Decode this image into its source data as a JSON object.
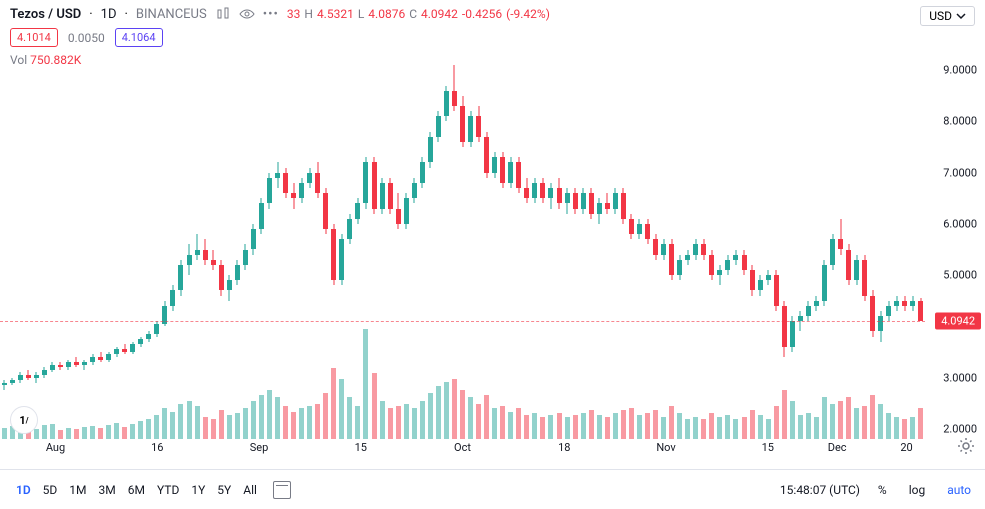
{
  "header": {
    "symbol": "Tezos / USD",
    "interval": "1D",
    "exchange": "BINANCEUS",
    "ohlc": {
      "o_partial": "33",
      "h": "4.5321",
      "l": "4.0876",
      "c": "4.0942",
      "chg": "-0.4256",
      "pct": "(-9.42%)"
    },
    "currency": "USD"
  },
  "row2": {
    "badge1": "4.1014",
    "spread": "0.0050",
    "badge2": "4.1064"
  },
  "volume": {
    "label": "Vol",
    "value": "750.882K"
  },
  "footer": {
    "timeframes": [
      "1D",
      "5D",
      "1M",
      "3M",
      "6M",
      "YTD",
      "1Y",
      "5Y",
      "All"
    ],
    "active": "1D",
    "clock": "15:48:07 (UTC)",
    "controls": [
      "%",
      "log",
      "auto"
    ]
  },
  "colors": {
    "up": "#26a69a",
    "down": "#f23645",
    "volUp": "rgba(38,166,154,0.5)",
    "volDown": "rgba(242,54,69,0.5)",
    "grid": "#e0e3eb",
    "badge1Border": "#f23645",
    "badge1Text": "#f23645",
    "badge2Border": "#5b42f3",
    "badge2Text": "#5b42f3",
    "ohlcColor": "#f23645",
    "spreadText": "#787b86"
  },
  "chart": {
    "ylim": [
      1.8,
      9.2
    ],
    "yticks": [
      2,
      3,
      4,
      5,
      6,
      7,
      8,
      9
    ],
    "ytick_fmt": [
      "2.0000",
      "3.0000",
      "4.0000",
      "5.0000",
      "6.0000",
      "7.0000",
      "8.0000",
      "9.0000"
    ],
    "priceLine": 4.0942,
    "xticks": [
      {
        "pos": 0.06,
        "label": "Aug"
      },
      {
        "pos": 0.17,
        "label": "16"
      },
      {
        "pos": 0.28,
        "label": "Sep"
      },
      {
        "pos": 0.39,
        "label": "15"
      },
      {
        "pos": 0.5,
        "label": "Oct"
      },
      {
        "pos": 0.61,
        "label": "18"
      },
      {
        "pos": 0.72,
        "label": "Nov"
      },
      {
        "pos": 0.83,
        "label": "15"
      },
      {
        "pos": 0.905,
        "label": "Dec"
      },
      {
        "pos": 0.98,
        "label": "20"
      }
    ],
    "candleWidth": 5,
    "volMaxHeight": 110,
    "candles": [
      {
        "o": 2.85,
        "h": 2.95,
        "l": 2.75,
        "c": 2.9,
        "v": 0.1,
        "up": true
      },
      {
        "o": 2.9,
        "h": 3.0,
        "l": 2.85,
        "c": 2.95,
        "v": 0.12,
        "up": true
      },
      {
        "o": 2.95,
        "h": 3.1,
        "l": 2.9,
        "c": 3.05,
        "v": 0.11,
        "up": true
      },
      {
        "o": 3.05,
        "h": 3.15,
        "l": 2.95,
        "c": 3.0,
        "v": 0.1,
        "up": false
      },
      {
        "o": 3.0,
        "h": 3.1,
        "l": 2.9,
        "c": 3.05,
        "v": 0.09,
        "up": true
      },
      {
        "o": 3.05,
        "h": 3.2,
        "l": 3.0,
        "c": 3.15,
        "v": 0.13,
        "up": true
      },
      {
        "o": 3.15,
        "h": 3.3,
        "l": 3.1,
        "c": 3.25,
        "v": 0.14,
        "up": true
      },
      {
        "o": 3.25,
        "h": 3.3,
        "l": 3.15,
        "c": 3.2,
        "v": 0.08,
        "up": false
      },
      {
        "o": 3.2,
        "h": 3.35,
        "l": 3.15,
        "c": 3.3,
        "v": 0.1,
        "up": true
      },
      {
        "o": 3.3,
        "h": 3.4,
        "l": 3.2,
        "c": 3.25,
        "v": 0.09,
        "up": false
      },
      {
        "o": 3.25,
        "h": 3.35,
        "l": 3.15,
        "c": 3.3,
        "v": 0.11,
        "up": true
      },
      {
        "o": 3.3,
        "h": 3.45,
        "l": 3.25,
        "c": 3.4,
        "v": 0.12,
        "up": true
      },
      {
        "o": 3.4,
        "h": 3.5,
        "l": 3.3,
        "c": 3.35,
        "v": 0.1,
        "up": false
      },
      {
        "o": 3.35,
        "h": 3.5,
        "l": 3.3,
        "c": 3.45,
        "v": 0.13,
        "up": true
      },
      {
        "o": 3.45,
        "h": 3.6,
        "l": 3.4,
        "c": 3.55,
        "v": 0.15,
        "up": true
      },
      {
        "o": 3.55,
        "h": 3.65,
        "l": 3.45,
        "c": 3.5,
        "v": 0.11,
        "up": false
      },
      {
        "o": 3.5,
        "h": 3.7,
        "l": 3.45,
        "c": 3.65,
        "v": 0.14,
        "up": true
      },
      {
        "o": 3.65,
        "h": 3.8,
        "l": 3.6,
        "c": 3.75,
        "v": 0.16,
        "up": true
      },
      {
        "o": 3.75,
        "h": 3.9,
        "l": 3.7,
        "c": 3.85,
        "v": 0.18,
        "up": true
      },
      {
        "o": 3.85,
        "h": 4.1,
        "l": 3.8,
        "c": 4.05,
        "v": 0.22,
        "up": true
      },
      {
        "o": 4.05,
        "h": 4.5,
        "l": 4.0,
        "c": 4.4,
        "v": 0.28,
        "up": true
      },
      {
        "o": 4.4,
        "h": 4.8,
        "l": 4.3,
        "c": 4.7,
        "v": 0.25,
        "up": true
      },
      {
        "o": 4.7,
        "h": 5.3,
        "l": 4.6,
        "c": 5.2,
        "v": 0.32,
        "up": true
      },
      {
        "o": 5.2,
        "h": 5.6,
        "l": 5.0,
        "c": 5.4,
        "v": 0.35,
        "up": true
      },
      {
        "o": 5.4,
        "h": 5.8,
        "l": 5.3,
        "c": 5.5,
        "v": 0.3,
        "up": true
      },
      {
        "o": 5.5,
        "h": 5.7,
        "l": 5.2,
        "c": 5.3,
        "v": 0.2,
        "up": false
      },
      {
        "o": 5.3,
        "h": 5.5,
        "l": 5.1,
        "c": 5.2,
        "v": 0.18,
        "up": false
      },
      {
        "o": 5.2,
        "h": 5.3,
        "l": 4.6,
        "c": 4.7,
        "v": 0.26,
        "up": false
      },
      {
        "o": 4.7,
        "h": 5.0,
        "l": 4.5,
        "c": 4.9,
        "v": 0.22,
        "up": true
      },
      {
        "o": 4.9,
        "h": 5.3,
        "l": 4.8,
        "c": 5.2,
        "v": 0.24,
        "up": true
      },
      {
        "o": 5.2,
        "h": 5.6,
        "l": 5.1,
        "c": 5.5,
        "v": 0.28,
        "up": true
      },
      {
        "o": 5.5,
        "h": 6.0,
        "l": 5.4,
        "c": 5.9,
        "v": 0.35,
        "up": true
      },
      {
        "o": 5.9,
        "h": 6.5,
        "l": 5.8,
        "c": 6.4,
        "v": 0.4,
        "up": true
      },
      {
        "o": 6.4,
        "h": 7.0,
        "l": 6.3,
        "c": 6.9,
        "v": 0.45,
        "up": true
      },
      {
        "o": 6.9,
        "h": 7.2,
        "l": 6.7,
        "c": 7.0,
        "v": 0.38,
        "up": true
      },
      {
        "o": 7.0,
        "h": 7.1,
        "l": 6.5,
        "c": 6.6,
        "v": 0.3,
        "up": false
      },
      {
        "o": 6.6,
        "h": 6.8,
        "l": 6.3,
        "c": 6.5,
        "v": 0.25,
        "up": false
      },
      {
        "o": 6.5,
        "h": 6.9,
        "l": 6.4,
        "c": 6.8,
        "v": 0.28,
        "up": true
      },
      {
        "o": 6.8,
        "h": 7.1,
        "l": 6.7,
        "c": 7.0,
        "v": 0.3,
        "up": true
      },
      {
        "o": 7.0,
        "h": 7.2,
        "l": 6.5,
        "c": 6.6,
        "v": 0.32,
        "up": false
      },
      {
        "o": 6.6,
        "h": 6.7,
        "l": 5.8,
        "c": 5.9,
        "v": 0.42,
        "up": false
      },
      {
        "o": 5.9,
        "h": 6.0,
        "l": 4.8,
        "c": 4.9,
        "v": 0.65,
        "up": false
      },
      {
        "o": 4.9,
        "h": 5.8,
        "l": 4.8,
        "c": 5.7,
        "v": 0.55,
        "up": true
      },
      {
        "o": 5.7,
        "h": 6.2,
        "l": 5.6,
        "c": 6.1,
        "v": 0.38,
        "up": true
      },
      {
        "o": 6.1,
        "h": 6.5,
        "l": 6.0,
        "c": 6.4,
        "v": 0.3,
        "up": true
      },
      {
        "o": 6.4,
        "h": 7.3,
        "l": 6.3,
        "c": 7.2,
        "v": 1.0,
        "up": true
      },
      {
        "o": 7.2,
        "h": 7.3,
        "l": 6.2,
        "c": 6.3,
        "v": 0.6,
        "up": false
      },
      {
        "o": 6.3,
        "h": 6.9,
        "l": 6.2,
        "c": 6.8,
        "v": 0.35,
        "up": true
      },
      {
        "o": 6.8,
        "h": 6.9,
        "l": 6.2,
        "c": 6.3,
        "v": 0.28,
        "up": false
      },
      {
        "o": 6.3,
        "h": 6.6,
        "l": 5.9,
        "c": 6.0,
        "v": 0.3,
        "up": false
      },
      {
        "o": 6.0,
        "h": 6.6,
        "l": 5.9,
        "c": 6.5,
        "v": 0.32,
        "up": true
      },
      {
        "o": 6.5,
        "h": 6.9,
        "l": 6.4,
        "c": 6.8,
        "v": 0.28,
        "up": true
      },
      {
        "o": 6.8,
        "h": 7.3,
        "l": 6.7,
        "c": 7.2,
        "v": 0.35,
        "up": true
      },
      {
        "o": 7.2,
        "h": 7.8,
        "l": 7.1,
        "c": 7.7,
        "v": 0.42,
        "up": true
      },
      {
        "o": 7.7,
        "h": 8.2,
        "l": 7.6,
        "c": 8.1,
        "v": 0.48,
        "up": true
      },
      {
        "o": 8.1,
        "h": 8.7,
        "l": 8.0,
        "c": 8.6,
        "v": 0.52,
        "up": true
      },
      {
        "o": 8.6,
        "h": 9.1,
        "l": 8.2,
        "c": 8.3,
        "v": 0.55,
        "up": false
      },
      {
        "o": 8.3,
        "h": 8.5,
        "l": 7.5,
        "c": 7.6,
        "v": 0.45,
        "up": false
      },
      {
        "o": 7.6,
        "h": 8.2,
        "l": 7.5,
        "c": 8.1,
        "v": 0.38,
        "up": true
      },
      {
        "o": 8.1,
        "h": 8.3,
        "l": 7.6,
        "c": 7.7,
        "v": 0.32,
        "up": false
      },
      {
        "o": 7.7,
        "h": 7.8,
        "l": 6.9,
        "c": 7.0,
        "v": 0.4,
        "up": false
      },
      {
        "o": 7.0,
        "h": 7.4,
        "l": 6.9,
        "c": 7.3,
        "v": 0.28,
        "up": true
      },
      {
        "o": 7.3,
        "h": 7.4,
        "l": 6.7,
        "c": 6.8,
        "v": 0.3,
        "up": false
      },
      {
        "o": 6.8,
        "h": 7.3,
        "l": 6.7,
        "c": 7.2,
        "v": 0.25,
        "up": true
      },
      {
        "o": 7.2,
        "h": 7.3,
        "l": 6.6,
        "c": 6.7,
        "v": 0.28,
        "up": false
      },
      {
        "o": 6.7,
        "h": 6.9,
        "l": 6.4,
        "c": 6.5,
        "v": 0.22,
        "up": false
      },
      {
        "o": 6.5,
        "h": 6.9,
        "l": 6.4,
        "c": 6.8,
        "v": 0.24,
        "up": true
      },
      {
        "o": 6.8,
        "h": 6.9,
        "l": 6.4,
        "c": 6.5,
        "v": 0.2,
        "up": false
      },
      {
        "o": 6.5,
        "h": 6.8,
        "l": 6.3,
        "c": 6.7,
        "v": 0.22,
        "up": true
      },
      {
        "o": 6.7,
        "h": 6.9,
        "l": 6.3,
        "c": 6.4,
        "v": 0.24,
        "up": false
      },
      {
        "o": 6.4,
        "h": 6.7,
        "l": 6.2,
        "c": 6.6,
        "v": 0.2,
        "up": true
      },
      {
        "o": 6.6,
        "h": 6.7,
        "l": 6.2,
        "c": 6.3,
        "v": 0.22,
        "up": false
      },
      {
        "o": 6.3,
        "h": 6.7,
        "l": 6.2,
        "c": 6.6,
        "v": 0.24,
        "up": true
      },
      {
        "o": 6.6,
        "h": 6.7,
        "l": 6.1,
        "c": 6.2,
        "v": 0.26,
        "up": false
      },
      {
        "o": 6.2,
        "h": 6.5,
        "l": 6.0,
        "c": 6.4,
        "v": 0.22,
        "up": true
      },
      {
        "o": 6.4,
        "h": 6.6,
        "l": 6.2,
        "c": 6.3,
        "v": 0.2,
        "up": false
      },
      {
        "o": 6.3,
        "h": 6.7,
        "l": 6.2,
        "c": 6.6,
        "v": 0.24,
        "up": true
      },
      {
        "o": 6.6,
        "h": 6.7,
        "l": 6.0,
        "c": 6.1,
        "v": 0.26,
        "up": false
      },
      {
        "o": 6.1,
        "h": 6.2,
        "l": 5.7,
        "c": 5.8,
        "v": 0.28,
        "up": false
      },
      {
        "o": 5.8,
        "h": 6.1,
        "l": 5.7,
        "c": 6.0,
        "v": 0.22,
        "up": true
      },
      {
        "o": 6.0,
        "h": 6.1,
        "l": 5.6,
        "c": 5.7,
        "v": 0.24,
        "up": false
      },
      {
        "o": 5.7,
        "h": 5.8,
        "l": 5.3,
        "c": 5.4,
        "v": 0.26,
        "up": false
      },
      {
        "o": 5.4,
        "h": 5.7,
        "l": 5.3,
        "c": 5.6,
        "v": 0.2,
        "up": true
      },
      {
        "o": 5.6,
        "h": 5.7,
        "l": 4.9,
        "c": 5.0,
        "v": 0.3,
        "up": false
      },
      {
        "o": 5.0,
        "h": 5.4,
        "l": 4.9,
        "c": 5.3,
        "v": 0.24,
        "up": true
      },
      {
        "o": 5.3,
        "h": 5.5,
        "l": 5.2,
        "c": 5.4,
        "v": 0.18,
        "up": true
      },
      {
        "o": 5.4,
        "h": 5.7,
        "l": 5.3,
        "c": 5.6,
        "v": 0.2,
        "up": true
      },
      {
        "o": 5.6,
        "h": 5.7,
        "l": 5.3,
        "c": 5.4,
        "v": 0.18,
        "up": false
      },
      {
        "o": 5.4,
        "h": 5.5,
        "l": 4.9,
        "c": 5.0,
        "v": 0.24,
        "up": false
      },
      {
        "o": 5.0,
        "h": 5.2,
        "l": 4.8,
        "c": 5.1,
        "v": 0.2,
        "up": true
      },
      {
        "o": 5.1,
        "h": 5.4,
        "l": 5.0,
        "c": 5.3,
        "v": 0.22,
        "up": true
      },
      {
        "o": 5.3,
        "h": 5.5,
        "l": 5.2,
        "c": 5.4,
        "v": 0.18,
        "up": true
      },
      {
        "o": 5.4,
        "h": 5.5,
        "l": 5.0,
        "c": 5.1,
        "v": 0.2,
        "up": false
      },
      {
        "o": 5.1,
        "h": 5.2,
        "l": 4.6,
        "c": 4.7,
        "v": 0.26,
        "up": false
      },
      {
        "o": 4.7,
        "h": 5.0,
        "l": 4.6,
        "c": 4.9,
        "v": 0.22,
        "up": true
      },
      {
        "o": 4.9,
        "h": 5.1,
        "l": 4.8,
        "c": 5.0,
        "v": 0.18,
        "up": true
      },
      {
        "o": 5.0,
        "h": 5.1,
        "l": 4.3,
        "c": 4.4,
        "v": 0.3,
        "up": false
      },
      {
        "o": 4.4,
        "h": 4.5,
        "l": 3.4,
        "c": 3.6,
        "v": 0.45,
        "up": false
      },
      {
        "o": 3.6,
        "h": 4.2,
        "l": 3.5,
        "c": 4.1,
        "v": 0.35,
        "up": true
      },
      {
        "o": 4.1,
        "h": 4.3,
        "l": 3.9,
        "c": 4.2,
        "v": 0.22,
        "up": true
      },
      {
        "o": 4.2,
        "h": 4.5,
        "l": 4.1,
        "c": 4.4,
        "v": 0.24,
        "up": true
      },
      {
        "o": 4.4,
        "h": 4.6,
        "l": 4.3,
        "c": 4.5,
        "v": 0.2,
        "up": true
      },
      {
        "o": 4.5,
        "h": 5.3,
        "l": 4.4,
        "c": 5.2,
        "v": 0.38,
        "up": true
      },
      {
        "o": 5.2,
        "h": 5.8,
        "l": 5.1,
        "c": 5.7,
        "v": 0.32,
        "up": true
      },
      {
        "o": 5.7,
        "h": 6.1,
        "l": 5.4,
        "c": 5.5,
        "v": 0.35,
        "up": false
      },
      {
        "o": 5.5,
        "h": 5.6,
        "l": 4.8,
        "c": 4.9,
        "v": 0.38,
        "up": false
      },
      {
        "o": 4.9,
        "h": 5.4,
        "l": 4.8,
        "c": 5.3,
        "v": 0.28,
        "up": true
      },
      {
        "o": 5.3,
        "h": 5.4,
        "l": 4.5,
        "c": 4.6,
        "v": 0.3,
        "up": false
      },
      {
        "o": 4.6,
        "h": 4.7,
        "l": 3.8,
        "c": 3.9,
        "v": 0.4,
        "up": false
      },
      {
        "o": 3.9,
        "h": 4.3,
        "l": 3.7,
        "c": 4.2,
        "v": 0.32,
        "up": true
      },
      {
        "o": 4.2,
        "h": 4.5,
        "l": 4.1,
        "c": 4.4,
        "v": 0.24,
        "up": true
      },
      {
        "o": 4.4,
        "h": 4.6,
        "l": 4.3,
        "c": 4.5,
        "v": 0.2,
        "up": true
      },
      {
        "o": 4.5,
        "h": 4.6,
        "l": 4.3,
        "c": 4.4,
        "v": 0.18,
        "up": false
      },
      {
        "o": 4.4,
        "h": 4.6,
        "l": 4.3,
        "c": 4.5,
        "v": 0.2,
        "up": true
      },
      {
        "o": 4.5,
        "h": 4.55,
        "l": 4.1,
        "c": 4.1,
        "v": 0.28,
        "up": false
      }
    ]
  }
}
